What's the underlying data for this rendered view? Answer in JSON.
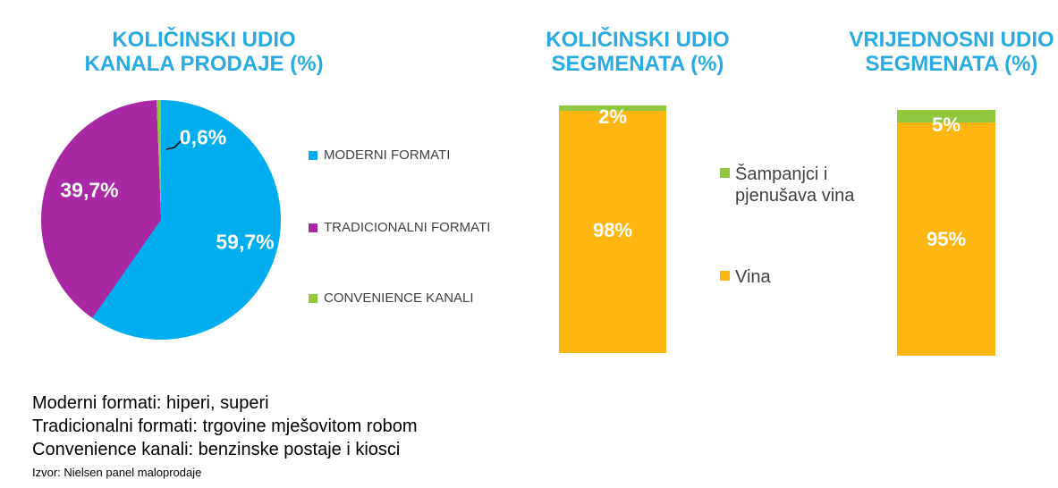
{
  "charts": {
    "pie": {
      "title_line1": "KOLIČINSKI UDIO",
      "title_line2": "KANALA PRODAJE (%)"
    },
    "volume_bar": {
      "title_line1": "KOLIČINSKI UDIO",
      "title_line2": "SEGMENATA (%)"
    },
    "value_bar": {
      "title_line1": "VRIJEDNOSNI UDIO",
      "title_line2": "SEGMENATA (%)"
    }
  },
  "colors": {
    "title_blue": "#29ABE2",
    "pie_blue": "#00AEEF",
    "purple": "#A929A5",
    "green": "#8FC73E",
    "orange": "#FFB611",
    "legend_text": "#404040",
    "footnote_text": "#000000"
  },
  "chart_data": [
    {
      "type": "pie",
      "title": "KOLIČINSKI UDIO KANALA PRODAJE (%)",
      "labels": [
        "MODERNI FORMATI",
        "TRADICIONALNI FORMATI",
        "CONVENIENCE KANALI"
      ],
      "values": [
        59.7,
        39.7,
        0.6
      ],
      "value_labels": [
        "59,7%",
        "39,7%",
        "0,6%"
      ],
      "colors": [
        "#00AEEF",
        "#A929A5",
        "#8FC73E"
      ],
      "start_angle_deg": 0,
      "direction": "clockwise",
      "legend_position": "right"
    },
    {
      "type": "bar",
      "stacked": true,
      "title": "KOLIČINSKI UDIO SEGMENATA (%)",
      "categories": [
        ""
      ],
      "series": [
        {
          "name": "Šampanjci i pjenušava vina",
          "values": [
            2
          ],
          "color": "#8FC73E"
        },
        {
          "name": "Vina",
          "values": [
            98
          ],
          "color": "#FFB611"
        }
      ],
      "value_labels": [
        "2%",
        "98%"
      ],
      "ylim": [
        0,
        100
      ],
      "grid": false,
      "legend_position": "right"
    },
    {
      "type": "bar",
      "stacked": true,
      "title": "VRIJEDNOSNI UDIO SEGMENATA (%)",
      "categories": [
        ""
      ],
      "series": [
        {
          "name": "Šampanjci i pjenušava vina",
          "values": [
            5
          ],
          "color": "#8FC73E"
        },
        {
          "name": "Vina",
          "values": [
            95
          ],
          "color": "#FFB611"
        }
      ],
      "value_labels": [
        "5%",
        "95%"
      ],
      "ylim": [
        0,
        100
      ],
      "grid": false,
      "legend_position": "none"
    }
  ],
  "footnotes": [
    "Moderni formati: hiperi, superi",
    "Tradicionalni formati: trgovine mješovitom robom",
    "Convenience kanali: benzinske postaje i kiosci"
  ],
  "source": "Izvor: Nielsen panel maloprodaje"
}
